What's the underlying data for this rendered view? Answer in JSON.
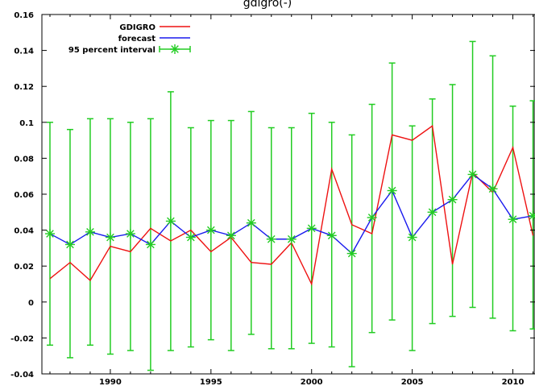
{
  "chart_data": {
    "type": "line",
    "title_fragment": "gdigro(-)",
    "xlim": [
      1986.6,
      2011.1
    ],
    "ylim": [
      -0.04,
      0.16
    ],
    "x_ticks": [
      {
        "value": 1990,
        "label": "1990"
      },
      {
        "value": 1995,
        "label": "1995"
      },
      {
        "value": 2000,
        "label": "2000"
      },
      {
        "value": 2005,
        "label": "2005"
      },
      {
        "value": 2010,
        "label": "2010"
      }
    ],
    "y_ticks": [
      {
        "value": -0.04,
        "label": "-0.04"
      },
      {
        "value": -0.02,
        "label": "-0.02"
      },
      {
        "value": 0,
        "label": "0"
      },
      {
        "value": 0.02,
        "label": "0.02"
      },
      {
        "value": 0.04,
        "label": "0.04"
      },
      {
        "value": 0.06,
        "label": "0.06"
      },
      {
        "value": 0.08,
        "label": "0.08"
      },
      {
        "value": 0.1,
        "label": "0.1"
      },
      {
        "value": 0.12,
        "label": "0.12"
      },
      {
        "value": 0.14,
        "label": "0.14"
      },
      {
        "value": 0.16,
        "label": "0.16"
      }
    ],
    "legend": {
      "placement": "top-left",
      "entries": [
        "GDIGRO",
        "forecast",
        "95 percent interval"
      ]
    },
    "series": [
      {
        "name": "GDIGRO",
        "color": "#ee1111",
        "x": [
          1987,
          1988,
          1989,
          1990,
          1991,
          1992,
          1993,
          1994,
          1995,
          1996,
          1997,
          1998,
          1999,
          2000,
          2001,
          2002,
          2003,
          2004,
          2005,
          2006,
          2007,
          2008,
          2009,
          2010,
          2011
        ],
        "values": [
          0.013,
          0.022,
          0.012,
          0.031,
          0.028,
          0.041,
          0.034,
          0.04,
          0.028,
          0.036,
          0.022,
          0.021,
          0.033,
          0.01,
          0.074,
          0.043,
          0.038,
          0.093,
          0.09,
          0.098,
          0.021,
          0.072,
          0.061,
          0.086,
          0.037
        ]
      },
      {
        "name": "forecast",
        "color": "#1a1aee",
        "x": [
          1987,
          1988,
          1989,
          1990,
          1991,
          1992,
          1993,
          1994,
          1995,
          1996,
          1997,
          1998,
          1999,
          2000,
          2001,
          2002,
          2003,
          2004,
          2005,
          2006,
          2007,
          2008,
          2009,
          2010,
          2011
        ],
        "values": [
          0.038,
          0.032,
          0.039,
          0.036,
          0.038,
          0.032,
          0.045,
          0.036,
          0.04,
          0.037,
          0.044,
          0.035,
          0.035,
          0.041,
          0.037,
          0.027,
          0.047,
          0.062,
          0.036,
          0.05,
          0.057,
          0.071,
          0.063,
          0.046,
          0.048
        ]
      }
    ],
    "interval": {
      "name": "95 percent interval",
      "color": "#22cc22",
      "x": [
        1987,
        1988,
        1989,
        1990,
        1991,
        1992,
        1993,
        1994,
        1995,
        1996,
        1997,
        1998,
        1999,
        2000,
        2001,
        2002,
        2003,
        2004,
        2005,
        2006,
        2007,
        2008,
        2009,
        2010,
        2011
      ],
      "low": [
        -0.024,
        -0.031,
        -0.024,
        -0.029,
        -0.027,
        -0.038,
        -0.027,
        -0.025,
        -0.021,
        -0.027,
        -0.018,
        -0.026,
        -0.026,
        -0.023,
        -0.025,
        -0.036,
        -0.017,
        -0.01,
        -0.027,
        -0.012,
        -0.008,
        -0.003,
        -0.009,
        -0.016,
        -0.015
      ],
      "high": [
        0.1,
        0.096,
        0.102,
        0.102,
        0.1,
        0.102,
        0.117,
        0.097,
        0.101,
        0.101,
        0.106,
        0.097,
        0.097,
        0.105,
        0.1,
        0.093,
        0.11,
        0.133,
        0.098,
        0.113,
        0.121,
        0.145,
        0.137,
        0.109,
        0.112
      ]
    }
  }
}
